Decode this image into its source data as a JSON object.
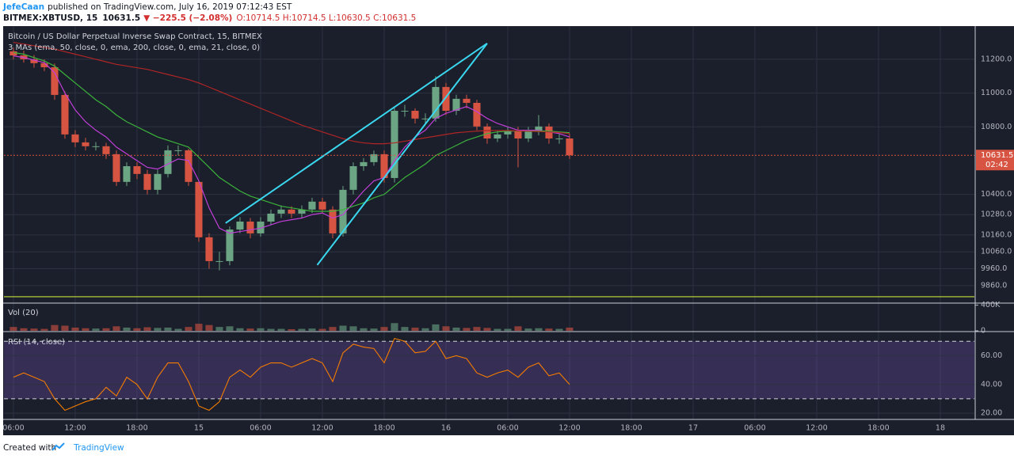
{
  "header": {
    "author": "JefeCaan",
    "published": "published on TradingView.com, July 16, 2019 07:12:43 EST",
    "symbol": "BITMEX:XBTUSD, 15",
    "last": "10631.5",
    "change": "▼ −225.5 (−2.08%)",
    "ohlc": "O:10714.5 H:10714.5 L:10630.5 C:10631.5"
  },
  "footer": {
    "prefix": "Created with",
    "brand": "TradingView"
  },
  "chart_data": {
    "type": "candlestick",
    "title": "Bitcoin / US Dollar Perpetual Inverse Swap Contract, 15, BITMEX",
    "indicator_label": "3 MAs (ema, 50, close, 0, ema, 200, close, 0, ema, 21, close, 0)",
    "up_color": "#6ba583",
    "down_color": "#d75442",
    "grid": true,
    "xlim": [
      -0.92,
      93.31
    ],
    "xticks": [
      {
        "value": 0,
        "label": "06:00"
      },
      {
        "value": 6,
        "label": "12:00"
      },
      {
        "value": 12,
        "label": "18:00"
      },
      {
        "value": 18,
        "label": "15"
      },
      {
        "value": 24,
        "label": "06:00"
      },
      {
        "value": 30,
        "label": "12:00"
      },
      {
        "value": 36,
        "label": "18:00"
      },
      {
        "value": 42,
        "label": "16"
      },
      {
        "value": 48,
        "label": "06:00"
      },
      {
        "value": 54,
        "label": "12:00"
      },
      {
        "value": 60,
        "label": "18:00"
      },
      {
        "value": 66,
        "label": "17"
      },
      {
        "value": 72,
        "label": "06:00"
      },
      {
        "value": 78,
        "label": "12:00"
      },
      {
        "value": 84,
        "label": "18:00"
      },
      {
        "value": 90,
        "label": "18"
      }
    ],
    "ylim": [
      9761,
      11387
    ],
    "yticks": [
      {
        "value": 11200,
        "label": "11200.0"
      },
      {
        "value": 11000,
        "label": "11000.0"
      },
      {
        "value": 10800,
        "label": "10800.0"
      },
      {
        "value": 10400,
        "label": "10400.0"
      },
      {
        "value": 10280,
        "label": "10280.0"
      },
      {
        "value": 10160,
        "label": "10160.0"
      },
      {
        "value": 10060,
        "label": "10060.0"
      },
      {
        "value": 9960,
        "label": "9960.0"
      },
      {
        "value": 9860,
        "label": "9860.0"
      }
    ],
    "x": [
      0,
      1,
      2,
      3,
      4,
      5,
      6,
      7,
      8,
      9,
      10,
      11,
      12,
      13,
      14,
      15,
      16,
      17,
      18,
      19,
      20,
      21,
      22,
      23,
      24,
      25,
      26,
      27,
      28,
      29,
      30,
      31,
      32,
      33,
      34,
      35,
      36,
      37,
      38,
      39,
      40,
      41,
      42,
      43,
      44,
      45,
      46,
      47,
      48,
      49,
      50,
      51,
      52,
      53,
      54
    ],
    "open": [
      11247,
      11223,
      11200,
      11177,
      11153,
      10989,
      10755,
      10708,
      10685,
      10685,
      10638,
      10474,
      10567,
      10521,
      10427,
      10521,
      10661,
      10661,
      10474,
      10146,
      10005,
      10005,
      10192,
      10239,
      10169,
      10239,
      10286,
      10310,
      10286,
      10310,
      10357,
      10310,
      10169,
      10427,
      10567,
      10591,
      10638,
      10497,
      10895,
      10895,
      10849,
      10849,
      11036,
      10895,
      10966,
      10942,
      10802,
      10731,
      10755,
      10778,
      10731,
      10778,
      10802,
      10731,
      10731
    ],
    "high": [
      11270,
      11250,
      11225,
      11200,
      11175,
      11010,
      10780,
      10735,
      10710,
      10705,
      10660,
      10590,
      10590,
      10545,
      10545,
      10690,
      10690,
      10670,
      10480,
      10170,
      10060,
      10210,
      10265,
      10260,
      10265,
      10310,
      10335,
      10330,
      10335,
      10380,
      10380,
      10330,
      10450,
      10590,
      10615,
      10660,
      10660,
      10920,
      10930,
      10910,
      10880,
      11100,
      11060,
      10990,
      10990,
      10960,
      10820,
      10775,
      10800,
      10800,
      10800,
      10870,
      10820,
      10760,
      10760
    ],
    "low": [
      11200,
      11180,
      11150,
      11130,
      10960,
      10730,
      10680,
      10660,
      10660,
      10610,
      10450,
      10450,
      10490,
      10400,
      10400,
      10500,
      10630,
      10450,
      10120,
      9960,
      9950,
      9980,
      10170,
      10140,
      10150,
      10220,
      10260,
      10260,
      10260,
      10290,
      10290,
      10140,
      10150,
      10400,
      10540,
      10570,
      10470,
      10470,
      10860,
      10820,
      10820,
      10830,
      10870,
      10870,
      10910,
      10780,
      10700,
      10710,
      10730,
      10560,
      10710,
      10750,
      10700,
      10700,
      10610
    ],
    "close": [
      11223,
      11200,
      11177,
      11153,
      10989,
      10755,
      10708,
      10685,
      10685,
      10638,
      10474,
      10567,
      10521,
      10427,
      10521,
      10661,
      10661,
      10474,
      10146,
      10005,
      10005,
      10192,
      10239,
      10169,
      10239,
      10286,
      10310,
      10286,
      10310,
      10357,
      10310,
      10169,
      10427,
      10567,
      10591,
      10638,
      10497,
      10895,
      10895,
      10849,
      10849,
      11036,
      10895,
      10966,
      10942,
      10802,
      10731,
      10755,
      10778,
      10731,
      10778,
      10802,
      10731,
      10731,
      10631.5
    ],
    "countdown": "02:42",
    "series": [
      {
        "color": "#c03fd8",
        "values": [
          11220,
          11210,
          11195,
          11180,
          11120,
          11000,
          10900,
          10830,
          10780,
          10740,
          10680,
          10640,
          10600,
          10560,
          10550,
          10580,
          10610,
          10600,
          10480,
          10320,
          10200,
          10170,
          10180,
          10190,
          10200,
          10220,
          10240,
          10250,
          10260,
          10280,
          10290,
          10260,
          10280,
          10350,
          10420,
          10480,
          10500,
          10600,
          10680,
          10740,
          10780,
          10850,
          10880,
          10900,
          10920,
          10890,
          10850,
          10820,
          10800,
          10780,
          10780,
          10780,
          10770,
          10760,
          10740
        ]
      },
      {
        "color": "#3bb33b",
        "values": [
          11240,
          11230,
          11210,
          11190,
          11160,
          11110,
          11060,
          11010,
          10960,
          10920,
          10870,
          10830,
          10800,
          10770,
          10740,
          10720,
          10700,
          10680,
          10620,
          10560,
          10500,
          10460,
          10420,
          10390,
          10370,
          10350,
          10330,
          10320,
          10310,
          10300,
          10300,
          10300,
          10310,
          10330,
          10350,
          10380,
          10400,
          10450,
          10500,
          10540,
          10580,
          10630,
          10660,
          10690,
          10720,
          10740,
          10760,
          10770,
          10775,
          10775,
          10775,
          10775,
          10775,
          10770,
          10765
        ]
      },
      {
        "color": "#b02525",
        "values": [
          11300,
          11290,
          11280,
          11270,
          11260,
          11245,
          11230,
          11215,
          11200,
          11185,
          11170,
          11160,
          11150,
          11140,
          11125,
          11110,
          11095,
          11080,
          11060,
          11035,
          11010,
          10985,
          10960,
          10935,
          10910,
          10885,
          10860,
          10835,
          10810,
          10790,
          10770,
          10750,
          10730,
          10715,
          10705,
          10700,
          10700,
          10705,
          10715,
          10725,
          10735,
          10745,
          10755,
          10765,
          10770,
          10775,
          10778,
          10778,
          10778,
          10776,
          10774,
          10772,
          10770,
          10766,
          10760
        ]
      }
    ],
    "trendlines": [
      {
        "color": "#3ad7f0",
        "points": [
          [
            20.6,
            10230
          ],
          [
            46,
            11294
          ]
        ]
      },
      {
        "color": "#3ad7f0",
        "points": [
          [
            29.5,
            9982
          ],
          [
            46,
            11294
          ]
        ]
      }
    ],
    "hline": {
      "value": 9794,
      "color": "#c6e03b"
    },
    "volume": {
      "label": "Vol (20)",
      "ylim": [
        0,
        420000
      ],
      "yticks": [
        {
          "value": 400000,
          "label": "400K"
        },
        0
      ],
      "values": [
        60000,
        40000,
        35000,
        30000,
        90000,
        80000,
        50000,
        40000,
        35000,
        40000,
        70000,
        50000,
        40000,
        55000,
        45000,
        50000,
        30000,
        60000,
        110000,
        90000,
        60000,
        70000,
        40000,
        35000,
        40000,
        30000,
        30000,
        25000,
        30000,
        35000,
        30000,
        60000,
        80000,
        70000,
        40000,
        35000,
        60000,
        120000,
        60000,
        50000,
        40000,
        100000,
        70000,
        50000,
        45000,
        60000,
        45000,
        30000,
        30000,
        70000,
        35000,
        40000,
        35000,
        30000,
        50000
      ]
    },
    "rsi": {
      "label": "RSI (14, close)",
      "color": "#f57c00",
      "ylim": [
        17.3,
        76.2
      ],
      "levels": [
        30,
        70
      ],
      "yticks": [
        {
          "value": 60,
          "label": "60.00"
        },
        {
          "value": 40,
          "label": "40.00"
        },
        {
          "value": 20,
          "label": "20.00"
        }
      ],
      "values": [
        45,
        48,
        45,
        42,
        30,
        22,
        25,
        28,
        30,
        38,
        32,
        45,
        40,
        30,
        45,
        55,
        55,
        42,
        25,
        22,
        28,
        45,
        50,
        45,
        52,
        55,
        55,
        52,
        55,
        58,
        55,
        42,
        62,
        68,
        66,
        65,
        55,
        72,
        70,
        62,
        63,
        70,
        58,
        60,
        58,
        48,
        45,
        48,
        50,
        45,
        52,
        55,
        46,
        48,
        40
      ]
    }
  }
}
